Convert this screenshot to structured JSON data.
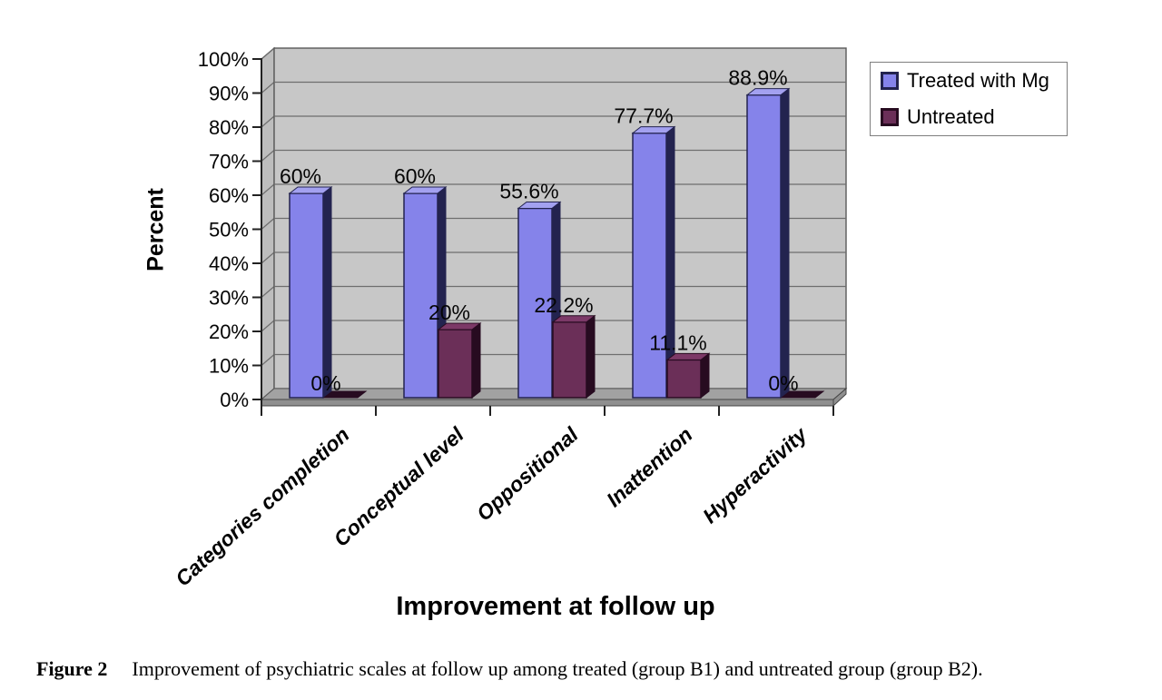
{
  "chart_data": {
    "type": "bar",
    "style": "3d-clustered-column",
    "title": "",
    "xlabel": "Improvement at follow up",
    "ylabel": "Percent",
    "categories": [
      "Categories completion",
      "Conceptual level",
      "Oppositional",
      "Inattention",
      "Hyperactivity"
    ],
    "series": [
      {
        "name": "Treated with Mg",
        "values": [
          60,
          60,
          55.6,
          77.7,
          88.9
        ],
        "labels": [
          "60%",
          "60%",
          "55.6%",
          "77.7%",
          "88.9%"
        ],
        "color": "#8583EA",
        "side_color": "#23234F",
        "top_color": "#A3A1F0"
      },
      {
        "name": "Untreated",
        "values": [
          0,
          20,
          22.2,
          11.1,
          0
        ],
        "labels": [
          "0%",
          "20%",
          "22.2%",
          "11.1%",
          "0%"
        ],
        "color": "#6B2F58",
        "side_color": "#270B20",
        "top_color": "#7C3967"
      }
    ],
    "ylim": [
      0,
      100
    ],
    "ytick_labels": [
      "0%",
      "10%",
      "20%",
      "30%",
      "40%",
      "50%",
      "60%",
      "70%",
      "80%",
      "90%",
      "100%"
    ],
    "grid": true,
    "legend_position": "top-right",
    "colors": {
      "back_wall": "#C7C7C7",
      "side_wall": "#BDBDBD",
      "floor": "#A2A2A2",
      "floor_front": "#8F8F8F",
      "gridline": "#6E6E6E",
      "outline": "#5A5A5A",
      "axis": "#222222",
      "label_text": "#050505"
    }
  },
  "caption": {
    "label": "Figure 2",
    "text": "Improvement of psychiatric scales at follow up among treated (group B1) and untreated group (group B2)."
  }
}
